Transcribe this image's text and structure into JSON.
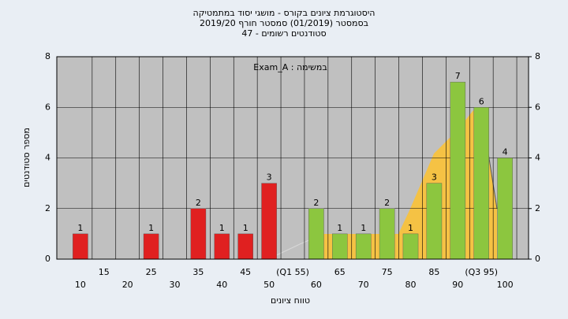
{
  "chart_data": {
    "type": "bar",
    "title": "היסטוגרמת ציונים בקורס - מושגי יסוד במתמטיקה",
    "subtitle": "בסמסטר (01/2019) סמסטר חורף 2019/20",
    "subtitle2": "סטודנטים רשומים - 47",
    "annotation": "Exam_A : במשימה",
    "x_label": "טווח ציונים",
    "y_label": "מספר סטודנטים",
    "categories": [
      "10",
      "15",
      "20",
      "25",
      "30",
      "35",
      "40",
      "45",
      "50",
      "(Q1 55)",
      "60",
      "65",
      "70",
      "75",
      "80",
      "85",
      "90",
      "(Q3 95)",
      "100"
    ],
    "values": [
      1,
      0,
      0,
      1,
      0,
      2,
      1,
      1,
      3,
      0,
      2,
      1,
      1,
      2,
      1,
      3,
      7,
      6,
      4
    ],
    "colors": [
      "#e02020",
      "#e02020",
      "#e02020",
      "#e02020",
      "#e02020",
      "#e02020",
      "#e02020",
      "#e02020",
      "#e02020",
      "#8cc63f",
      "#8cc63f",
      "#8cc63f",
      "#8cc63f",
      "#8cc63f",
      "#8cc63f",
      "#8cc63f",
      "#8cc63f",
      "#8cc63f",
      "#8cc63f"
    ],
    "ylim": [
      0,
      8
    ],
    "yticks": [
      0,
      2,
      4,
      6,
      8
    ],
    "y2lim": [
      0,
      8
    ],
    "y2ticks": [
      0,
      2,
      4,
      6,
      8
    ],
    "grid": true
  }
}
